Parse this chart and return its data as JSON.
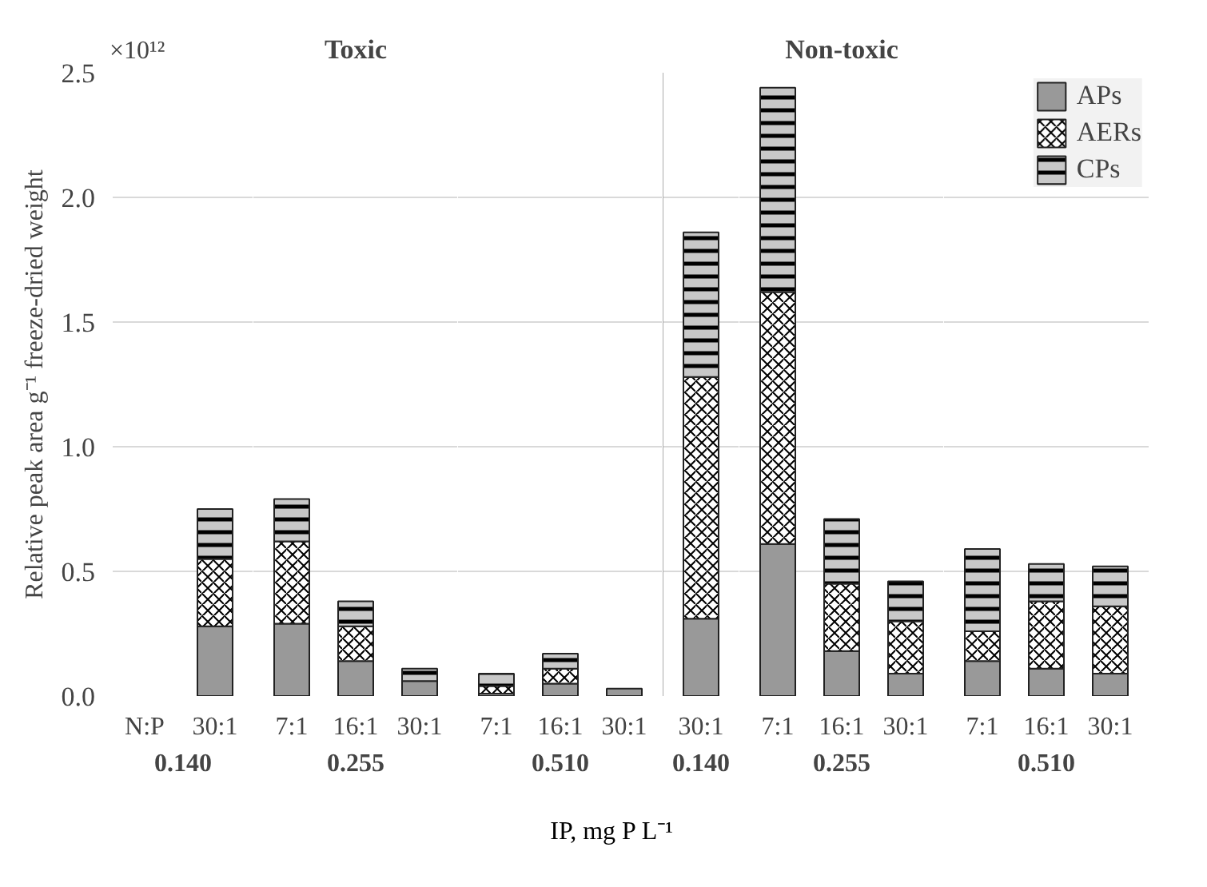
{
  "chart_data": [
    {
      "type": "bar",
      "xlabel": "0.140",
      "ylabel": "Relative peak area g⁻¹ freeze-dried weight",
      "categories": [
        "30:1"
      ],
      "stacked": true,
      "series": [
        {
          "color": "#999999",
          "values": [
            0.28
          ]
        },
        {
          "color": "#ffffff",
          "values": [
            0.27
          ]
        },
        {
          "color": "#c8c8c8",
          "values": [
            0.2
          ]
        }
      ],
      "ylim": [
        0,
        2.5
      ],
      "yticks": [
        {
          "value": 0,
          "label": "0.0"
        },
        {
          "value": 0.5,
          "label": "0.5"
        },
        {
          "value": 1,
          "label": "1.0"
        },
        {
          "value": 1.5,
          "label": "1.5"
        },
        {
          "value": 2,
          "label": "2.0"
        },
        {
          "value": 2.5,
          "label": "2.5"
        }
      ],
      "grid": "y",
      "annotations": [
        "×10¹²",
        "N:P",
        "IP, mg P L⁻¹"
      ]
    },
    {
      "type": "bar",
      "title": "Toxic",
      "xlabel": "0.255",
      "categories": [
        "7:1",
        "16:1",
        "30:1"
      ],
      "stacked": true,
      "series": [
        {
          "color": "#999999",
          "values": [
            0.29,
            0.14,
            0.06
          ]
        },
        {
          "color": "#ffffff",
          "values": [
            0.33,
            0.14,
            null
          ]
        },
        {
          "color": "#c8c8c8",
          "values": [
            0.17,
            0.1,
            0.05
          ]
        }
      ],
      "ylim": [
        0,
        2.5
      ],
      "yticks": [
        0,
        0.5,
        1,
        1.5,
        2,
        2.5
      ],
      "grid": "y",
      "tick_labels": "x"
    },
    {
      "type": "bar",
      "xlabel": "0.510",
      "categories": [
        "7:1",
        "16:1",
        "30:1"
      ],
      "stacked": true,
      "series": [
        {
          "color": "#999999",
          "values": [
            0.01,
            0.05,
            0.03
          ]
        },
        {
          "color": "#ffffff",
          "values": [
            0.03,
            0.06,
            null
          ]
        },
        {
          "color": "#c8c8c8",
          "values": [
            0.05,
            0.06,
            null
          ]
        }
      ],
      "ylim": [
        0,
        2.5
      ],
      "yticks": [
        0,
        0.5,
        1,
        1.5,
        2,
        2.5
      ],
      "grid": "y",
      "tick_labels": "x"
    },
    {
      "type": "bar",
      "xlabel": "0.140",
      "categories": [
        "30:1"
      ],
      "stacked": true,
      "series": [
        {
          "color": "#999999",
          "values": [
            0.31
          ]
        },
        {
          "color": "#ffffff",
          "values": [
            0.97
          ]
        },
        {
          "color": "#c8c8c8",
          "values": [
            0.58
          ]
        }
      ],
      "ylim": [
        0,
        2.5
      ],
      "yticks": [
        0,
        0.5,
        1,
        1.5,
        2,
        2.5
      ],
      "grid": "y",
      "tick_labels": "x"
    },
    {
      "type": "bar",
      "title": "Non-toxic",
      "xlabel": "0.255",
      "categories": [
        "7:1",
        "16:1",
        "30:1"
      ],
      "stacked": true,
      "series": [
        {
          "color": "#999999",
          "values": [
            0.61,
            0.18,
            0.09
          ]
        },
        {
          "color": "#ffffff",
          "values": [
            1.01,
            0.27,
            0.21
          ]
        },
        {
          "color": "#c8c8c8",
          "values": [
            0.82,
            0.26,
            0.16
          ]
        }
      ],
      "ylim": [
        0,
        2.5
      ],
      "yticks": [
        0,
        0.5,
        1,
        1.5,
        2,
        2.5
      ],
      "grid": "y",
      "tick_labels": "x"
    },
    {
      "type": "bar",
      "xlabel": "0.510",
      "categories": [
        "7:1",
        "16:1",
        "30:1"
      ],
      "stacked": true,
      "series": [
        {
          "name": "APs",
          "color": "#999999",
          "values": [
            0.14,
            0.11,
            0.09
          ]
        },
        {
          "name": "AERs",
          "color": "#ffffff",
          "values": [
            0.12,
            0.27,
            0.27
          ]
        },
        {
          "name": "CPs",
          "color": "#c8c8c8",
          "values": [
            0.33,
            0.15,
            0.16
          ]
        }
      ],
      "ylim": [
        0,
        2.5
      ],
      "yticks": [
        0,
        0.5,
        1,
        1.5,
        2,
        2.5
      ],
      "grid": "y",
      "tick_labels": "x",
      "legend": "top right"
    }
  ]
}
